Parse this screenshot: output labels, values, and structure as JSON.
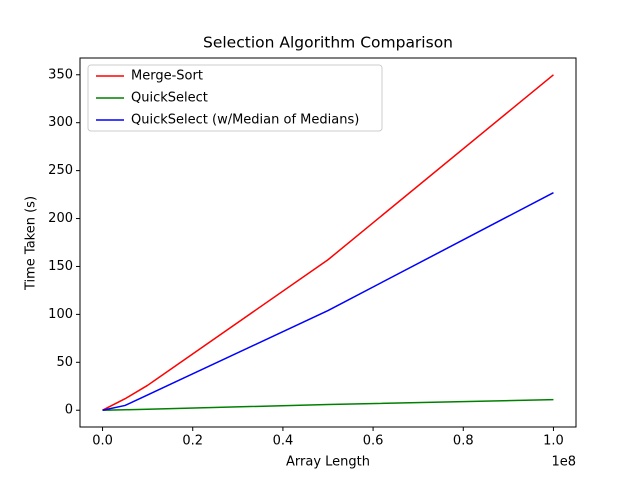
{
  "chart_data": {
    "type": "line",
    "title": "Selection Algorithm Comparison",
    "xlabel": "Array Length",
    "ylabel": "Time Taken (s)",
    "x_offset_label": "1e8",
    "x": [
      0,
      5000000,
      10000000,
      50000000,
      100000000
    ],
    "series": [
      {
        "name": "Merge-Sort",
        "color": "#ff0000",
        "values": [
          0,
          12,
          26,
          157,
          350
        ]
      },
      {
        "name": "QuickSelect",
        "color": "#008000",
        "values": [
          0,
          0.5,
          1,
          6,
          11
        ]
      },
      {
        "name": "QuickSelect (w/Median of Medians)",
        "color": "#0000ff",
        "values": [
          0,
          5,
          16,
          104,
          227
        ]
      }
    ],
    "xlim": [
      -5000000,
      105000000
    ],
    "ylim": [
      -17.5,
      367.5
    ],
    "xticks": [
      {
        "value": 0,
        "label": "0.0"
      },
      {
        "value": 20000000,
        "label": "0.2"
      },
      {
        "value": 40000000,
        "label": "0.4"
      },
      {
        "value": 60000000,
        "label": "0.6"
      },
      {
        "value": 80000000,
        "label": "0.8"
      },
      {
        "value": 100000000,
        "label": "1.0"
      }
    ],
    "yticks": [
      0,
      50,
      100,
      150,
      200,
      250,
      300,
      350
    ],
    "grid": false,
    "legend": "upper-left"
  }
}
